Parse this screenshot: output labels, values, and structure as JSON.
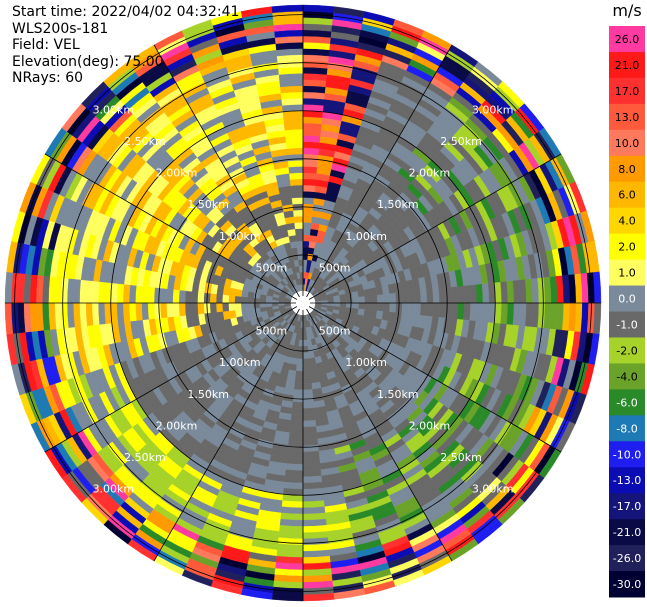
{
  "info": {
    "start_time": "Start time: 2022/04/02 04:32:41",
    "instrument": "WLS200s-181",
    "field": "Field: VEL",
    "elevation": "Elevation(deg): 75.00",
    "nrays": "NRays: 60"
  },
  "chart_data": {
    "type": "heatmap",
    "projection": "polar (PPI scan)",
    "field": "VEL",
    "elevation_deg": 75.0,
    "nrays": 60,
    "range_rings": [
      "500m",
      "1.00km",
      "1.50km",
      "2.00km",
      "2.50km",
      "3.00km"
    ],
    "range_rings_m": [
      500,
      1000,
      1500,
      2000,
      2500,
      3000
    ],
    "max_range_m": 3100,
    "azimuth_lines_deg": [
      0,
      30,
      60,
      90,
      120,
      150,
      180,
      210,
      240,
      270,
      300,
      330
    ],
    "colorbar": {
      "unit": "m/s",
      "ticks": [
        "26.0",
        "21.0",
        "17.0",
        "13.0",
        "10.0",
        "8.0",
        "6.0",
        "4.0",
        "2.0",
        "1.0",
        "0.0",
        "-1.0",
        "-2.0",
        "-4.0",
        "-6.0",
        "-8.0",
        "-10.0",
        "-13.0",
        "-17.0",
        "-21.0",
        "-26.0",
        "-30.0"
      ],
      "colors": [
        "#ff3aa0",
        "#ff1a1a",
        "#ff3030",
        "#ff5a3c",
        "#ff7a5c",
        "#ff9a00",
        "#ffb800",
        "#ffd700",
        "#ffff00",
        "#ffff60",
        "#7a8a9a",
        "#696969",
        "#a6d22a",
        "#6ba32a",
        "#2a8a2a",
        "#1e7ab4",
        "#1e1ef0",
        "#0c0cb4",
        "#14147a",
        "#0a0a46",
        "#20205a",
        "#000033"
      ]
    },
    "regions": [
      {
        "az_from": 0,
        "az_to": 18,
        "r_from": 0,
        "r_to": 3100,
        "class": "red-pink mix"
      },
      {
        "az_from": 18,
        "az_to": 35,
        "r_from": 0,
        "r_to": 1600,
        "class": "gray near-zero"
      },
      {
        "az_from": 35,
        "az_to": 170,
        "r_from": 600,
        "r_to": 2600,
        "class": "gray with green negatives"
      },
      {
        "az_from": 170,
        "az_to": 250,
        "r_from": 0,
        "r_to": 2600,
        "class": "gray near-zero"
      },
      {
        "az_from": 250,
        "az_to": 355,
        "r_from": 600,
        "r_to": 2600,
        "class": "yellow positives"
      },
      {
        "az_from": 0,
        "az_to": 360,
        "r_from": 2600,
        "r_to": 3100,
        "class": "outer mixed noise"
      }
    ]
  }
}
